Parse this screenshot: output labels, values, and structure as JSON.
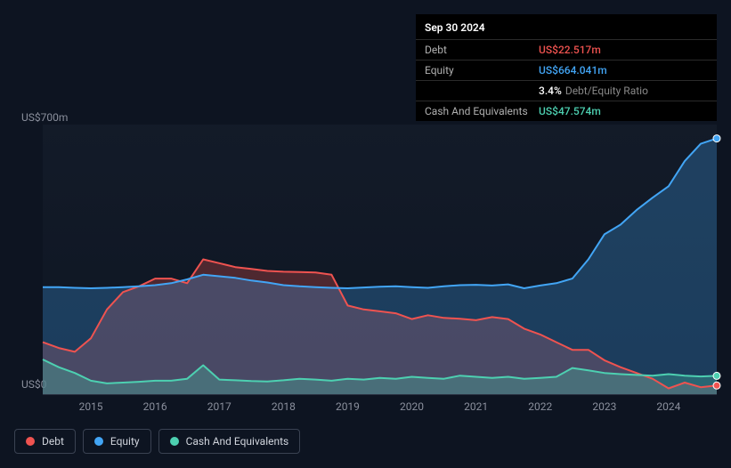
{
  "infoBox": {
    "date": "Sep 30 2024",
    "rows": [
      {
        "label": "Debt",
        "value": "US$22.517m",
        "cls": "debt"
      },
      {
        "label": "Equity",
        "value": "US$664.041m",
        "cls": "equity"
      },
      {
        "label": "",
        "value": "3.4%",
        "suffix": "Debt/Equity Ratio",
        "cls": "ratio"
      },
      {
        "label": "Cash And Equivalents",
        "value": "US$47.574m",
        "cls": "cash"
      }
    ]
  },
  "chart": {
    "type": "area-line",
    "ylim": [
      0,
      700
    ],
    "yTicks": [
      {
        "label": "US$700m",
        "v": 700
      },
      {
        "label": "US$0",
        "v": 0
      }
    ],
    "xStart": 2014.25,
    "xEnd": 2024.75,
    "xTicks": [
      2015,
      2016,
      2017,
      2018,
      2019,
      2020,
      2021,
      2022,
      2023,
      2024
    ],
    "background_color": "#0d1421",
    "grid_color": "#2a3242",
    "label_fontsize": 12,
    "label_color": "#8a8f9c",
    "lineWidth": 2,
    "fillOpacity": 0.28,
    "endMarkerRadius": 4,
    "series": [
      {
        "name": "Debt",
        "color": "#ef5350",
        "data": [
          [
            2014.25,
            135
          ],
          [
            2014.5,
            120
          ],
          [
            2014.75,
            110
          ],
          [
            2015.0,
            145
          ],
          [
            2015.25,
            220
          ],
          [
            2015.5,
            265
          ],
          [
            2015.75,
            280
          ],
          [
            2016.0,
            300
          ],
          [
            2016.25,
            300
          ],
          [
            2016.5,
            288
          ],
          [
            2016.75,
            350
          ],
          [
            2017.0,
            340
          ],
          [
            2017.25,
            330
          ],
          [
            2017.5,
            325
          ],
          [
            2017.75,
            320
          ],
          [
            2018.0,
            318
          ],
          [
            2018.25,
            317
          ],
          [
            2018.5,
            316
          ],
          [
            2018.75,
            310
          ],
          [
            2019.0,
            230
          ],
          [
            2019.25,
            220
          ],
          [
            2019.5,
            215
          ],
          [
            2019.75,
            210
          ],
          [
            2020.0,
            195
          ],
          [
            2020.25,
            205
          ],
          [
            2020.5,
            198
          ],
          [
            2020.75,
            196
          ],
          [
            2021.0,
            192
          ],
          [
            2021.25,
            200
          ],
          [
            2021.5,
            195
          ],
          [
            2021.75,
            170
          ],
          [
            2022.0,
            155
          ],
          [
            2022.25,
            135
          ],
          [
            2022.5,
            115
          ],
          [
            2022.75,
            115
          ],
          [
            2023.0,
            88
          ],
          [
            2023.25,
            70
          ],
          [
            2023.5,
            55
          ],
          [
            2023.75,
            40
          ],
          [
            2024.0,
            15
          ],
          [
            2024.25,
            30
          ],
          [
            2024.5,
            18
          ],
          [
            2024.75,
            22.5
          ]
        ]
      },
      {
        "name": "Equity",
        "color": "#42a5f5",
        "data": [
          [
            2014.25,
            278
          ],
          [
            2014.5,
            278
          ],
          [
            2014.75,
            276
          ],
          [
            2015.0,
            275
          ],
          [
            2015.25,
            276
          ],
          [
            2015.5,
            278
          ],
          [
            2015.75,
            280
          ],
          [
            2016.0,
            283
          ],
          [
            2016.25,
            288
          ],
          [
            2016.5,
            298
          ],
          [
            2016.75,
            310
          ],
          [
            2017.0,
            306
          ],
          [
            2017.25,
            302
          ],
          [
            2017.5,
            295
          ],
          [
            2017.75,
            290
          ],
          [
            2018.0,
            283
          ],
          [
            2018.25,
            280
          ],
          [
            2018.5,
            278
          ],
          [
            2018.75,
            276
          ],
          [
            2019.0,
            275
          ],
          [
            2019.25,
            277
          ],
          [
            2019.5,
            279
          ],
          [
            2019.75,
            280
          ],
          [
            2020.0,
            278
          ],
          [
            2020.25,
            276
          ],
          [
            2020.5,
            280
          ],
          [
            2020.75,
            283
          ],
          [
            2021.0,
            284
          ],
          [
            2021.25,
            282
          ],
          [
            2021.5,
            285
          ],
          [
            2021.75,
            275
          ],
          [
            2022.0,
            282
          ],
          [
            2022.25,
            288
          ],
          [
            2022.5,
            300
          ],
          [
            2022.75,
            350
          ],
          [
            2023.0,
            415
          ],
          [
            2023.25,
            440
          ],
          [
            2023.5,
            478
          ],
          [
            2023.75,
            510
          ],
          [
            2024.0,
            540
          ],
          [
            2024.25,
            605
          ],
          [
            2024.5,
            650
          ],
          [
            2024.75,
            664
          ]
        ]
      },
      {
        "name": "Cash And Equivalents",
        "color": "#4dd0b1",
        "data": [
          [
            2014.25,
            90
          ],
          [
            2014.5,
            70
          ],
          [
            2014.75,
            55
          ],
          [
            2015.0,
            35
          ],
          [
            2015.25,
            28
          ],
          [
            2015.5,
            30
          ],
          [
            2015.75,
            32
          ],
          [
            2016.0,
            35
          ],
          [
            2016.25,
            35
          ],
          [
            2016.5,
            40
          ],
          [
            2016.75,
            75
          ],
          [
            2017.0,
            38
          ],
          [
            2017.25,
            36
          ],
          [
            2017.5,
            34
          ],
          [
            2017.75,
            33
          ],
          [
            2018.0,
            36
          ],
          [
            2018.25,
            40
          ],
          [
            2018.5,
            38
          ],
          [
            2018.75,
            35
          ],
          [
            2019.0,
            40
          ],
          [
            2019.25,
            38
          ],
          [
            2019.5,
            42
          ],
          [
            2019.75,
            40
          ],
          [
            2020.0,
            45
          ],
          [
            2020.25,
            42
          ],
          [
            2020.5,
            40
          ],
          [
            2020.75,
            48
          ],
          [
            2021.0,
            45
          ],
          [
            2021.25,
            42
          ],
          [
            2021.5,
            45
          ],
          [
            2021.75,
            40
          ],
          [
            2022.0,
            42
          ],
          [
            2022.25,
            45
          ],
          [
            2022.5,
            68
          ],
          [
            2022.75,
            62
          ],
          [
            2023.0,
            55
          ],
          [
            2023.25,
            52
          ],
          [
            2023.5,
            50
          ],
          [
            2023.75,
            48
          ],
          [
            2024.0,
            52
          ],
          [
            2024.25,
            48
          ],
          [
            2024.5,
            46
          ],
          [
            2024.75,
            47.6
          ]
        ]
      }
    ]
  },
  "legend": [
    {
      "label": "Debt",
      "cls": "debt"
    },
    {
      "label": "Equity",
      "cls": "equity"
    },
    {
      "label": "Cash And Equivalents",
      "cls": "cash"
    }
  ]
}
